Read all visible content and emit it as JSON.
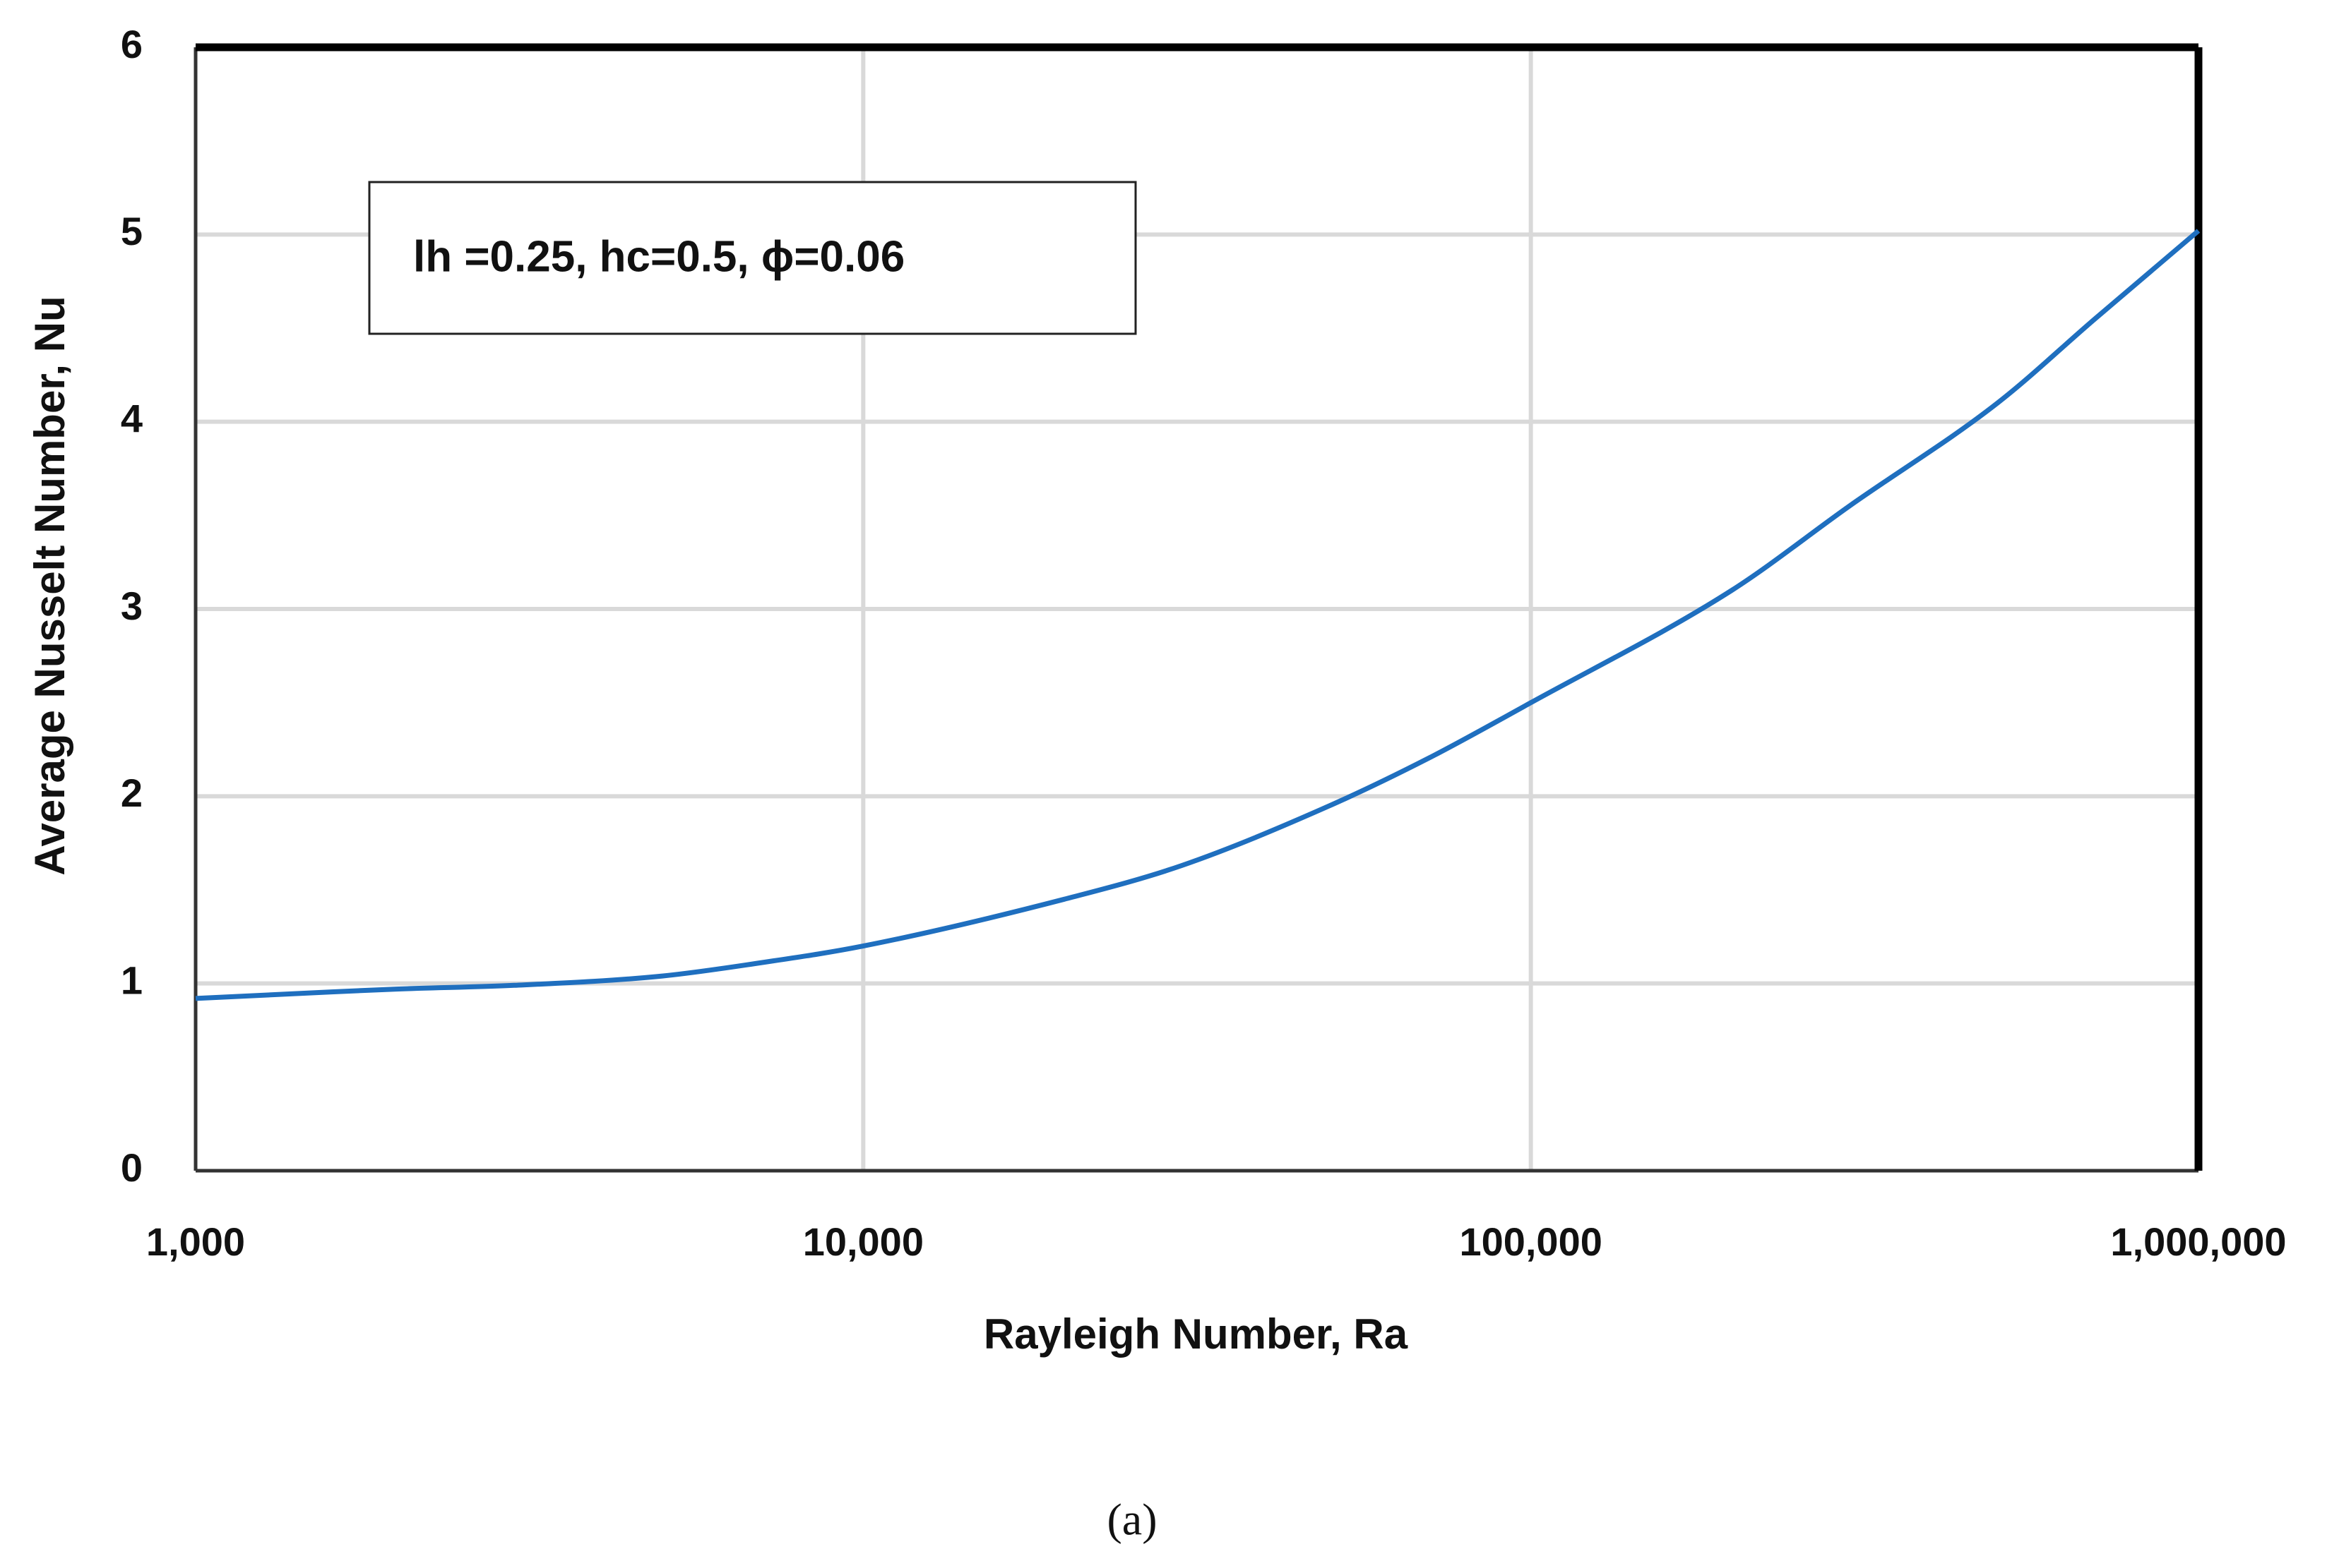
{
  "chart_data": {
    "type": "line",
    "xscale": "log",
    "xlim": [
      1000,
      1000000
    ],
    "ylim": [
      0,
      6
    ],
    "x_ticks": [
      1000,
      10000,
      100000,
      1000000
    ],
    "x_tick_labels": [
      "1,000",
      "10,000",
      "100,000",
      "1,000,000"
    ],
    "y_ticks": [
      0,
      1,
      2,
      3,
      4,
      5,
      6
    ],
    "y_tick_labels": [
      "0",
      "1",
      "2",
      "3",
      "4",
      "5",
      "6"
    ],
    "xlabel": "Rayleigh Number, Ra",
    "ylabel": "Average Nusselt Number, Nu",
    "annotation": "lh =0.25, hc=0.5, ϕ=0.06",
    "caption": "(a)",
    "grid": true,
    "line_color": "#1f6fbf",
    "series": [
      {
        "x": [
          1000,
          2000,
          3000,
          5000,
          7000,
          10000,
          20000,
          30000,
          50000,
          70000,
          100000,
          200000,
          300000,
          500000,
          700000,
          1000000
        ],
        "values": [
          0.92,
          0.97,
          0.99,
          1.04,
          1.11,
          1.2,
          1.45,
          1.63,
          1.95,
          2.2,
          2.5,
          3.1,
          3.55,
          4.1,
          4.55,
          5.02
        ]
      }
    ]
  }
}
